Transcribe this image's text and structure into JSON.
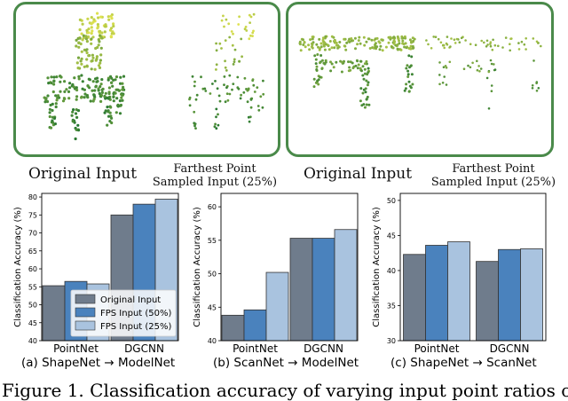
{
  "point_clouds": [
    {
      "original_caption": "Original Input",
      "fps_caption_line1": "Farthest Point",
      "fps_caption_line2": "Sampled Input (25%)",
      "object": "chair"
    },
    {
      "original_caption": "Original Input",
      "fps_caption_line1": "Farthest Point",
      "fps_caption_line2": "Sampled Input (25%)",
      "object": "table"
    }
  ],
  "legend": [
    "Original Input",
    "FPS Input (50%)",
    "FPS Input (25%)"
  ],
  "colors": {
    "original": "#6f7c8c",
    "fps50": "#4a82bd",
    "fps25": "#a9c3df",
    "panel_border": "#4a8a4a"
  },
  "subcaptions": [
    "(a) ShapeNet → ModelNet",
    "(b) ScanNet → ModelNet",
    "(c) ShapeNet → ScanNet"
  ],
  "figure_caption": "Figure 1. Classification accuracy of varying input point ratios on",
  "chart_data": [
    {
      "type": "bar",
      "categories": [
        "PointNet",
        "DGCNN"
      ],
      "ylabel": "Classification Accuracy (%)",
      "ylim": [
        40,
        81
      ],
      "yticks": [
        40,
        45,
        50,
        55,
        60,
        65,
        70,
        75,
        80
      ],
      "series": [
        {
          "name": "Original Input",
          "values": [
            55.3,
            75.0
          ]
        },
        {
          "name": "FPS Input (50%)",
          "values": [
            56.5,
            78.0
          ]
        },
        {
          "name": "FPS Input (25%)",
          "values": [
            55.8,
            79.4
          ]
        }
      ],
      "legend": "bottom-left"
    },
    {
      "type": "bar",
      "categories": [
        "PointNet",
        "DGCNN"
      ],
      "ylabel": "Classification Accuracy (%)",
      "ylim": [
        40,
        62
      ],
      "yticks": [
        40,
        45,
        50,
        55,
        60
      ],
      "series": [
        {
          "name": "Original Input",
          "values": [
            43.8,
            55.3
          ]
        },
        {
          "name": "FPS Input (50%)",
          "values": [
            44.6,
            55.3
          ]
        },
        {
          "name": "FPS Input (25%)",
          "values": [
            50.2,
            56.6
          ]
        }
      ]
    },
    {
      "type": "bar",
      "categories": [
        "PointNet",
        "DGCNN"
      ],
      "ylabel": "Classification Accuracy (%)",
      "ylim": [
        30,
        51
      ],
      "yticks": [
        30,
        35,
        40,
        45,
        50
      ],
      "series": [
        {
          "name": "Original Input",
          "values": [
            42.3,
            41.3
          ]
        },
        {
          "name": "FPS Input (50%)",
          "values": [
            43.6,
            43.0
          ]
        },
        {
          "name": "FPS Input (25%)",
          "values": [
            44.1,
            43.1
          ]
        }
      ]
    }
  ]
}
